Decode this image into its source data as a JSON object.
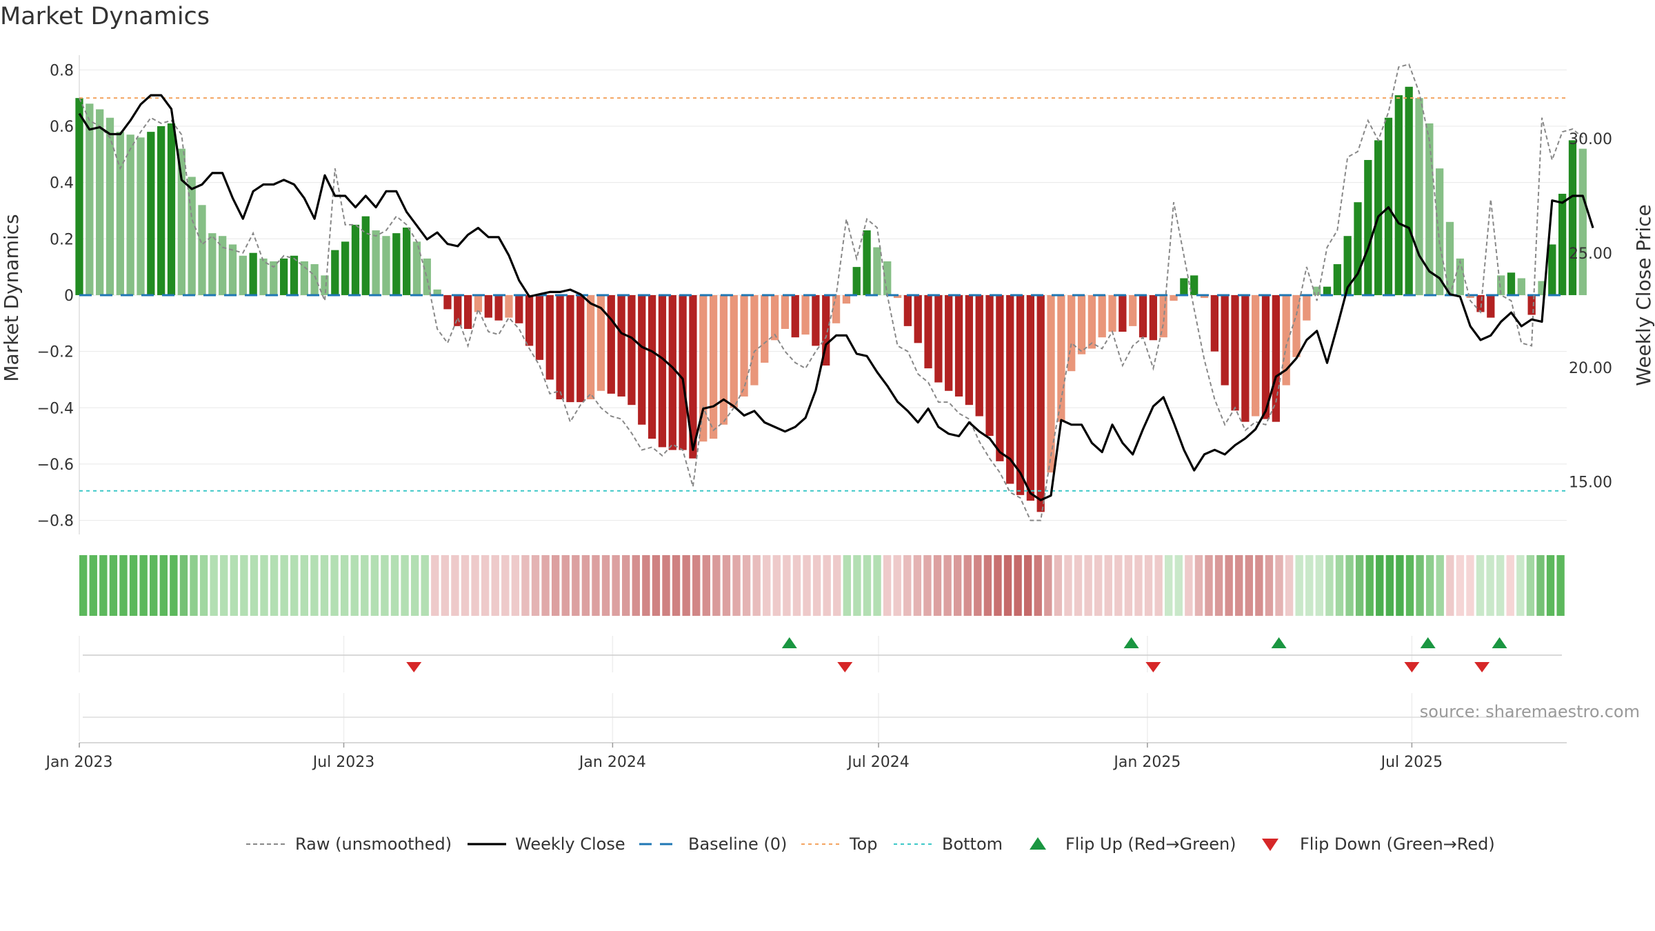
{
  "chart_data": {
    "type": "bar",
    "title": "Market Dynamics",
    "ylabel": "Market Dynamics",
    "y2label": "Weekly Close Price",
    "ylim": [
      -0.85,
      0.84
    ],
    "y2lim": [
      12.7,
      33.5
    ],
    "yticks": [
      0.8,
      0.6,
      0.4,
      0.2,
      0,
      -0.2,
      -0.4,
      -0.6,
      -0.8
    ],
    "yticklabels": [
      "0.8",
      "0.6",
      "0.4",
      "0.2",
      "0",
      "−0.2",
      "−0.4",
      "−0.6",
      "−0.8"
    ],
    "y2ticks": [
      30,
      25,
      20,
      15
    ],
    "y2ticklabels": [
      "30.00",
      "25.00",
      "20.00",
      "15.00"
    ],
    "x_start": "2023-01-01",
    "x_end": "2025-10-15",
    "xticks": [
      "2023-01-01",
      "2023-07-01",
      "2024-01-01",
      "2024-07-01",
      "2025-01-01",
      "2025-07-01"
    ],
    "xticklabels": [
      "Jan 2023",
      "Jul 2023",
      "Jan 2024",
      "Jul 2024",
      "Jan 2025",
      "Jul 2025"
    ],
    "top": 0.7,
    "bottom": -0.695,
    "baseline": 0,
    "source": "source: sharemaestro.com",
    "colors": {
      "strong_green": "#228b22",
      "light_green": "#86bf86",
      "strong_red": "#b22222",
      "light_red": "#e9967a",
      "close": "#000000",
      "raw": "#888888",
      "baseline": "#1f77b4",
      "top": "#f4a460",
      "bottom": "#3cc8c8",
      "flip_up": "#1a9641",
      "flip_down": "#d62728"
    },
    "bar_start": "2023-01-01",
    "bar_interval_days": 7,
    "bar_values": [
      0.7,
      0.68,
      0.66,
      0.63,
      0.58,
      0.57,
      0.56,
      0.58,
      0.6,
      0.61,
      0.52,
      0.42,
      0.32,
      0.22,
      0.21,
      0.18,
      0.14,
      0.15,
      0.13,
      0.12,
      0.13,
      0.14,
      0.12,
      0.11,
      0.07,
      0.16,
      0.19,
      0.25,
      0.28,
      0.23,
      0.21,
      0.22,
      0.24,
      0.19,
      0.13,
      0.02,
      -0.05,
      -0.11,
      -0.12,
      -0.06,
      -0.08,
      -0.09,
      -0.08,
      -0.1,
      -0.18,
      -0.23,
      -0.3,
      -0.37,
      -0.38,
      -0.38,
      -0.37,
      -0.34,
      -0.35,
      -0.36,
      -0.39,
      -0.46,
      -0.51,
      -0.54,
      -0.55,
      -0.55,
      -0.58,
      -0.52,
      -0.51,
      -0.46,
      -0.4,
      -0.36,
      -0.32,
      -0.24,
      -0.16,
      -0.12,
      -0.15,
      -0.14,
      -0.18,
      -0.25,
      -0.1,
      -0.03,
      0.1,
      0.23,
      0.17,
      0.12,
      -0.01,
      -0.11,
      -0.17,
      -0.26,
      -0.31,
      -0.34,
      -0.36,
      -0.39,
      -0.43,
      -0.5,
      -0.59,
      -0.67,
      -0.71,
      -0.73,
      -0.77,
      -0.63,
      -0.45,
      -0.27,
      -0.21,
      -0.19,
      -0.15,
      -0.13,
      -0.13,
      -0.11,
      -0.15,
      -0.16,
      -0.15,
      -0.02,
      0.06,
      0.07,
      -0.01,
      -0.2,
      -0.32,
      -0.41,
      -0.45,
      -0.43,
      -0.44,
      -0.45,
      -0.32,
      -0.22,
      -0.09,
      0.03,
      0.03,
      0.11,
      0.21,
      0.33,
      0.48,
      0.55,
      0.63,
      0.71,
      0.74,
      0.7,
      0.61,
      0.45,
      0.26,
      0.13,
      -0.01,
      -0.06,
      -0.08,
      0.07,
      0.08,
      0.06,
      -0.07,
      0.05,
      0.18,
      0.36,
      0.55,
      0.52
    ],
    "close_values": [
      31.1,
      30.4,
      30.5,
      30.2,
      30.2,
      30.8,
      31.5,
      31.9,
      31.9,
      31.3,
      28.2,
      27.8,
      28.0,
      28.5,
      28.5,
      27.4,
      26.5,
      27.7,
      28.0,
      28.0,
      28.2,
      28.0,
      27.4,
      26.5,
      28.4,
      27.5,
      27.5,
      27.0,
      27.5,
      27.0,
      27.7,
      27.7,
      26.8,
      26.2,
      25.6,
      25.9,
      25.4,
      25.3,
      25.8,
      26.1,
      25.7,
      25.7,
      24.9,
      23.8,
      23.1,
      23.2,
      23.3,
      23.3,
      23.4,
      23.2,
      22.8,
      22.6,
      22.1,
      21.5,
      21.3,
      20.9,
      20.7,
      20.4,
      20.0,
      19.5,
      16.4,
      18.2,
      18.3,
      18.6,
      18.3,
      17.9,
      18.1,
      17.6,
      17.4,
      17.2,
      17.4,
      17.8,
      19.0,
      21.0,
      21.4,
      21.4,
      20.6,
      20.5,
      19.8,
      19.2,
      18.5,
      18.1,
      17.6,
      18.2,
      17.4,
      17.1,
      17.0,
      17.6,
      17.2,
      16.9,
      16.3,
      16.0,
      15.4,
      14.5,
      14.2,
      14.4,
      17.7,
      17.5,
      17.5,
      16.7,
      16.3,
      17.5,
      16.7,
      16.2,
      17.3,
      18.3,
      18.7,
      17.6,
      16.4,
      15.5,
      16.2,
      16.4,
      16.2,
      16.6,
      16.9,
      17.3,
      18.1,
      19.6,
      19.9,
      20.4,
      21.2,
      21.6,
      20.2,
      21.8,
      23.5,
      24.1,
      25.2,
      26.6,
      27.0,
      26.3,
      26.1,
      24.9,
      24.2,
      23.9,
      23.2,
      23.1,
      21.8,
      21.2,
      21.4,
      22.0,
      22.4,
      21.8,
      22.1,
      22.0,
      27.3,
      27.2,
      27.5,
      27.5,
      26.1
    ],
    "raw_values": [
      0.7,
      0.62,
      0.6,
      0.56,
      0.45,
      0.52,
      0.58,
      0.63,
      0.61,
      0.62,
      0.57,
      0.27,
      0.18,
      0.21,
      0.17,
      0.16,
      0.15,
      0.22,
      0.12,
      0.1,
      0.14,
      0.13,
      0.1,
      0.07,
      -0.02,
      0.45,
      0.25,
      0.25,
      0.22,
      0.21,
      0.23,
      0.28,
      0.25,
      0.19,
      0.06,
      -0.12,
      -0.17,
      -0.08,
      -0.18,
      -0.05,
      -0.13,
      -0.14,
      -0.08,
      -0.12,
      -0.19,
      -0.25,
      -0.35,
      -0.34,
      -0.45,
      -0.39,
      -0.35,
      -0.4,
      -0.43,
      -0.44,
      -0.49,
      -0.55,
      -0.54,
      -0.57,
      -0.53,
      -0.55,
      -0.68,
      -0.4,
      -0.48,
      -0.45,
      -0.4,
      -0.33,
      -0.2,
      -0.17,
      -0.14,
      -0.2,
      -0.24,
      -0.26,
      -0.2,
      -0.15,
      0.0,
      0.27,
      0.13,
      0.27,
      0.24,
      0.0,
      -0.18,
      -0.2,
      -0.28,
      -0.31,
      -0.38,
      -0.38,
      -0.42,
      -0.44,
      -0.52,
      -0.58,
      -0.63,
      -0.7,
      -0.72,
      -0.8,
      -0.8,
      -0.57,
      -0.37,
      -0.17,
      -0.2,
      -0.17,
      -0.19,
      -0.13,
      -0.25,
      -0.18,
      -0.15,
      -0.26,
      -0.1,
      0.33,
      0.14,
      -0.05,
      -0.23,
      -0.37,
      -0.46,
      -0.4,
      -0.48,
      -0.45,
      -0.46,
      -0.38,
      -0.18,
      -0.07,
      0.1,
      -0.02,
      0.17,
      0.23,
      0.49,
      0.51,
      0.62,
      0.55,
      0.65,
      0.81,
      0.82,
      0.72,
      0.55,
      0.18,
      0.0,
      0.12,
      -0.02,
      -0.06,
      0.34,
      0.0,
      -0.02,
      -0.17,
      -0.18,
      0.63,
      0.48,
      0.58,
      0.59,
      0.56
    ],
    "strip_colors": [
      "#5cb85c",
      "#5cb85c",
      "#5cb85c",
      "#5cb85c",
      "#5cb85c",
      "#5cb85c",
      "#5cb85c",
      "#5cb85c",
      "#5cb85c",
      "#5cb85c",
      "#75c175",
      "#8ece8e",
      "#a1d7a1",
      "#b3dfb3",
      "#b3dfb3",
      "#b3dfb3",
      "#b3dfb3",
      "#b3dfb3",
      "#b3dfb3",
      "#b3dfb3",
      "#b3dfb3",
      "#b3dfb3",
      "#b3dfb3",
      "#b3dfb3",
      "#b3dfb3",
      "#b3dfb3",
      "#b3dfb3",
      "#b3dfb3",
      "#b3dfb3",
      "#b3dfb3",
      "#b3dfb3",
      "#b3dfb3",
      "#b3dfb3",
      "#b3dfb3",
      "#b3dfb3",
      "#eecaca",
      "#eecaca",
      "#eecaca",
      "#eecaca",
      "#eecaca",
      "#eecaca",
      "#eecaca",
      "#eecaca",
      "#eecaca",
      "#e8bcbc",
      "#e4b3b3",
      "#e0a9a9",
      "#dca0a0",
      "#dca0a0",
      "#dca0a0",
      "#dca0a0",
      "#dca0a0",
      "#dca0a0",
      "#dca0a0",
      "#d99a9a",
      "#d58f8f",
      "#d18686",
      "#cf8181",
      "#cf8181",
      "#cf8181",
      "#cf8181",
      "#d18686",
      "#d58f8f",
      "#d99a9a",
      "#dca0a0",
      "#e0a9a9",
      "#e4b3b3",
      "#e8bcbc",
      "#eecaca",
      "#eecaca",
      "#eecaca",
      "#eecaca",
      "#eecaca",
      "#eecaca",
      "#eecaca",
      "#eecaca",
      "#b3dfb3",
      "#b3dfb3",
      "#b3dfb3",
      "#b3dfb3",
      "#eecaca",
      "#eecaca",
      "#e8bcbc",
      "#e4b3b3",
      "#e0a9a9",
      "#dca0a0",
      "#dca0a0",
      "#d99a9a",
      "#d58f8f",
      "#d18686",
      "#cc7a7a",
      "#c87070",
      "#c56a6a",
      "#c56a6a",
      "#c56a6a",
      "#cc7a7a",
      "#d99a9a",
      "#e8bcbc",
      "#eecaca",
      "#eecaca",
      "#eecaca",
      "#eecaca",
      "#eecaca",
      "#eecaca",
      "#eecaca",
      "#eecaca",
      "#eecaca",
      "#eecaca",
      "#c9e8c9",
      "#c9e8c9",
      "#eecaca",
      "#e4b3b3",
      "#dca0a0",
      "#d99a9a",
      "#d58f8f",
      "#d58f8f",
      "#d58f8f",
      "#d58f8f",
      "#dca0a0",
      "#e4b3b3",
      "#eecaca",
      "#c9e8c9",
      "#c9e8c9",
      "#c9e8c9",
      "#b3dfb3",
      "#a1d7a1",
      "#8ece8e",
      "#75c175",
      "#5cb85c",
      "#4caf50",
      "#4caf50",
      "#4caf50",
      "#5cb85c",
      "#75c175",
      "#8ece8e",
      "#a1d7a1",
      "#eecaca",
      "#f5d5d5",
      "#f5d5d5",
      "#c9e8c9",
      "#c9e8c9",
      "#c9e8c9",
      "#f5d5d5",
      "#c9e8c9",
      "#a1d7a1",
      "#75c175",
      "#5cb85c",
      "#5cb85c"
    ],
    "flip_up_dates": [
      "2024-05-01",
      "2024-12-21",
      "2025-04-01",
      "2025-07-12",
      "2025-08-30"
    ],
    "flip_down_dates": [
      "2023-08-18",
      "2024-06-08",
      "2025-01-05",
      "2025-07-01",
      "2025-08-18"
    ],
    "legend": [
      {
        "label": "Raw (unsmoothed)",
        "style": "raw"
      },
      {
        "label": "Weekly Close",
        "style": "close"
      },
      {
        "label": "Baseline (0)",
        "style": "baseline"
      },
      {
        "label": "Top",
        "style": "top"
      },
      {
        "label": "Bottom",
        "style": "bottom"
      },
      {
        "label": "Flip Up (Red→Green)",
        "style": "flip_up"
      },
      {
        "label": "Flip Down (Green→Red)",
        "style": "flip_down"
      }
    ]
  }
}
